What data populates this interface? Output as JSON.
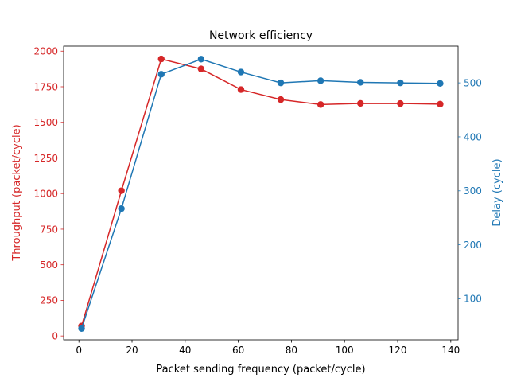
{
  "chart_data": {
    "type": "line",
    "title": "Network efficiency",
    "xlabel": "Packet sending frequency (packet/cycle)",
    "ylabel_left": "Throughput (packet/cycle)",
    "ylabel_right": "Delay (cycle)",
    "xlim": [
      -5.75,
      142.75
    ],
    "ylim_left": [
      -27,
      2035
    ],
    "ylim_right": [
      24,
      568
    ],
    "x_ticks": [
      0,
      20,
      40,
      60,
      80,
      100,
      120,
      140
    ],
    "y_left_ticks": [
      0,
      250,
      500,
      750,
      1000,
      1250,
      1500,
      1750,
      2000
    ],
    "y_right_ticks": [
      100,
      200,
      300,
      400,
      500
    ],
    "grid": false,
    "x": [
      1,
      16,
      31,
      46,
      61,
      76,
      91,
      106,
      121,
      136
    ],
    "series": [
      {
        "axis": "left",
        "color": "#d62728",
        "values": [
          70,
          1020,
          1945,
          1875,
          1730,
          1660,
          1625,
          1633,
          1632,
          1628
        ]
      },
      {
        "axis": "right",
        "color": "#1f77b4",
        "values": [
          45,
          267,
          516,
          544,
          520,
          500,
          504,
          501,
          500,
          499
        ]
      }
    ]
  }
}
